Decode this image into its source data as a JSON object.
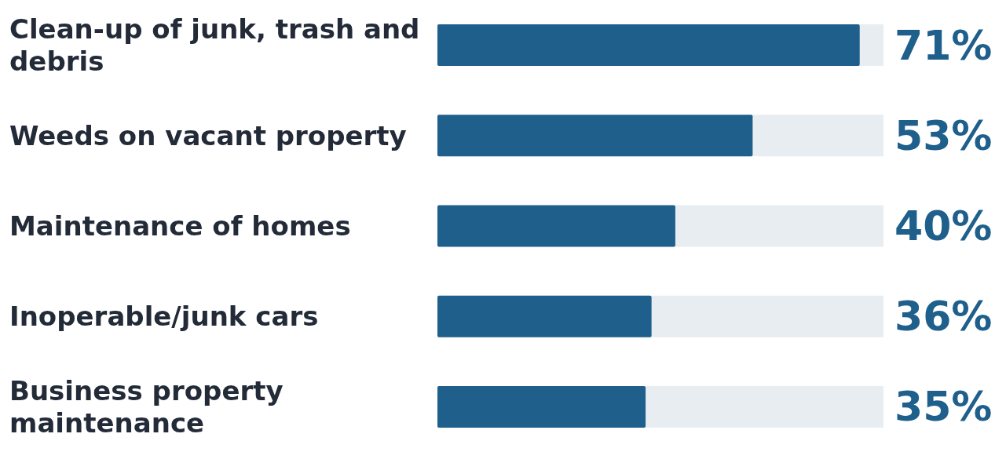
{
  "chart_data": {
    "type": "bar",
    "orientation": "horizontal",
    "categories": [
      "Clean-up of junk, trash and debris",
      "Weeds on vacant property",
      "Maintenance of homes",
      "Inoperable/junk cars",
      "Business property maintenance"
    ],
    "values": [
      71,
      53,
      40,
      36,
      35
    ],
    "value_labels": [
      "71%",
      "53%",
      "40%",
      "36%",
      "35%"
    ],
    "color": "#1f5f8b",
    "xlim": [
      0,
      75
    ],
    "grid": false,
    "legend": false
  }
}
